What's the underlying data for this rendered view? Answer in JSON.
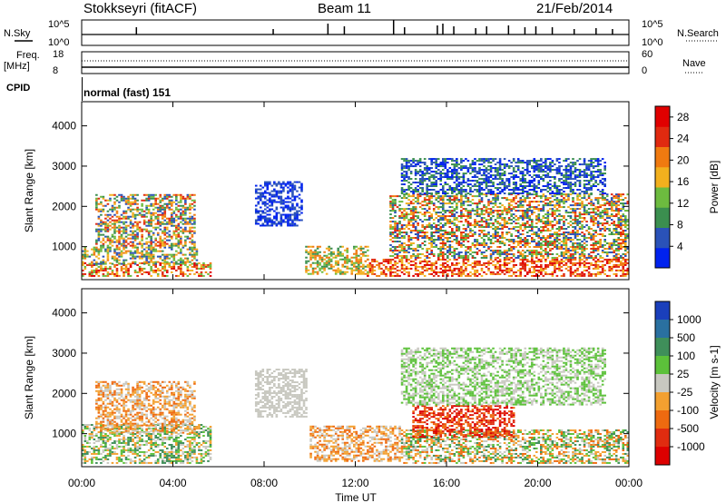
{
  "header": {
    "station": "Stokkseyri (fitACF)",
    "beam": "Beam 11",
    "date": "21/Feb/2014"
  },
  "noise_panel": {
    "left_label": "N.Sky",
    "right_label": "N.Search",
    "left_ticks": [
      "10^5",
      "10^0"
    ],
    "right_ticks": [
      "10^5",
      "10^0"
    ]
  },
  "freq_panel": {
    "left_label_top": "Freq.",
    "left_label_unit": "[MHz]",
    "right_label": "Nave",
    "left_ticks": [
      "18",
      "8"
    ],
    "right_ticks": [
      "60",
      "0"
    ]
  },
  "cpid": {
    "label": "CPID",
    "value": "normal (fast) 151"
  },
  "x_axis": {
    "label": "Time UT",
    "ticks": [
      "00:00",
      "04:00",
      "08:00",
      "12:00",
      "16:00",
      "20:00",
      "00:00"
    ]
  },
  "colors": {
    "power_scale": [
      "#0022ee",
      "#2a52b8",
      "#3b8f4f",
      "#6dbb3f",
      "#f2b01e",
      "#f07a10",
      "#e02a10",
      "#e00000"
    ],
    "velocity_scale": [
      "#1a3fbb",
      "#2a70a0",
      "#3f8f5a",
      "#5cc13a",
      "#c8c8c0",
      "#f3a030",
      "#ee6a10",
      "#e02c10",
      "#dd0000"
    ]
  },
  "chart_data": [
    {
      "type": "heatmap",
      "panel": "power",
      "ylabel": "Slant Range [km]",
      "yticks": [
        1000,
        2000,
        3000,
        4000
      ],
      "ylim": [
        180,
        4600
      ],
      "xlim": [
        0,
        24
      ],
      "colorbar_label": "Power [dB]",
      "colorbar_ticks": [
        "4",
        "8",
        "12",
        "16",
        "20",
        "24",
        "28"
      ],
      "colorbar_range": [
        0,
        30
      ]
    },
    {
      "type": "heatmap",
      "panel": "velocity",
      "ylabel": "Slant Range [km]",
      "yticks": [
        1000,
        2000,
        3000,
        4000
      ],
      "ylim": [
        180,
        4600
      ],
      "xlim": [
        0,
        24
      ],
      "colorbar_label": "Velocity [m s-1]",
      "colorbar_ticks": [
        "1000",
        "500",
        "100",
        "25",
        "-25",
        "-100",
        "-500",
        "-1000"
      ]
    }
  ]
}
